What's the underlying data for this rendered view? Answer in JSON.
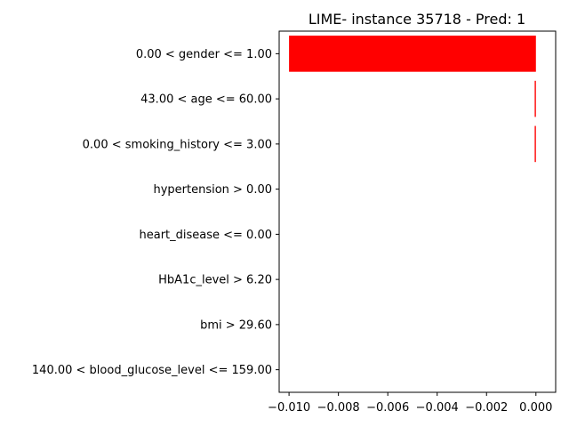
{
  "chart_data": {
    "type": "bar",
    "orientation": "horizontal",
    "title": "LIME- instance 35718 - Pred: 1",
    "xlabel": "",
    "ylabel": "",
    "categories": [
      "0.00 < gender <= 1.00",
      "43.00 < age <= 60.00",
      "0.00 < smoking_history <= 3.00",
      "hypertension > 0.00",
      "heart_disease <= 0.00",
      "HbA1c_level > 6.20",
      "bmi > 29.60",
      "140.00 < blood_glucose_level <= 159.00"
    ],
    "values": [
      -0.01,
      -5e-05,
      -5e-05,
      0,
      0,
      0,
      0,
      0
    ],
    "xlim": [
      -0.0104,
      0.0008
    ],
    "xticks": [
      -0.01,
      -0.008,
      -0.006,
      -0.004,
      -0.002,
      0.0
    ],
    "xtick_labels": [
      "−0.010",
      "−0.008",
      "−0.006",
      "−0.004",
      "−0.002",
      "0.000"
    ],
    "bar_color": "#ff0000",
    "grid": false
  }
}
